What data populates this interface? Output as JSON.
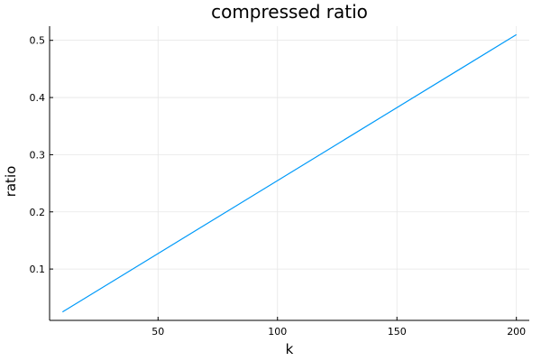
{
  "chart_data": {
    "type": "line",
    "title": "compressed ratio",
    "xlabel": "k",
    "ylabel": "ratio",
    "xlim": [
      4.6,
      205.4
    ],
    "ylim": [
      0.0102,
      0.5248
    ],
    "xticks": [
      50,
      100,
      150,
      200
    ],
    "yticks": [
      0.1,
      0.2,
      0.3,
      0.4,
      0.5
    ],
    "xtick_labels": [
      "50",
      "100",
      "150",
      "200"
    ],
    "ytick_labels": [
      "0.1",
      "0.2",
      "0.3",
      "0.4",
      "0.5"
    ],
    "grid": true,
    "legend": false,
    "series": [
      {
        "color": "#009af9",
        "x": [
          10,
          200
        ],
        "y": [
          0.025,
          0.51
        ]
      }
    ]
  }
}
